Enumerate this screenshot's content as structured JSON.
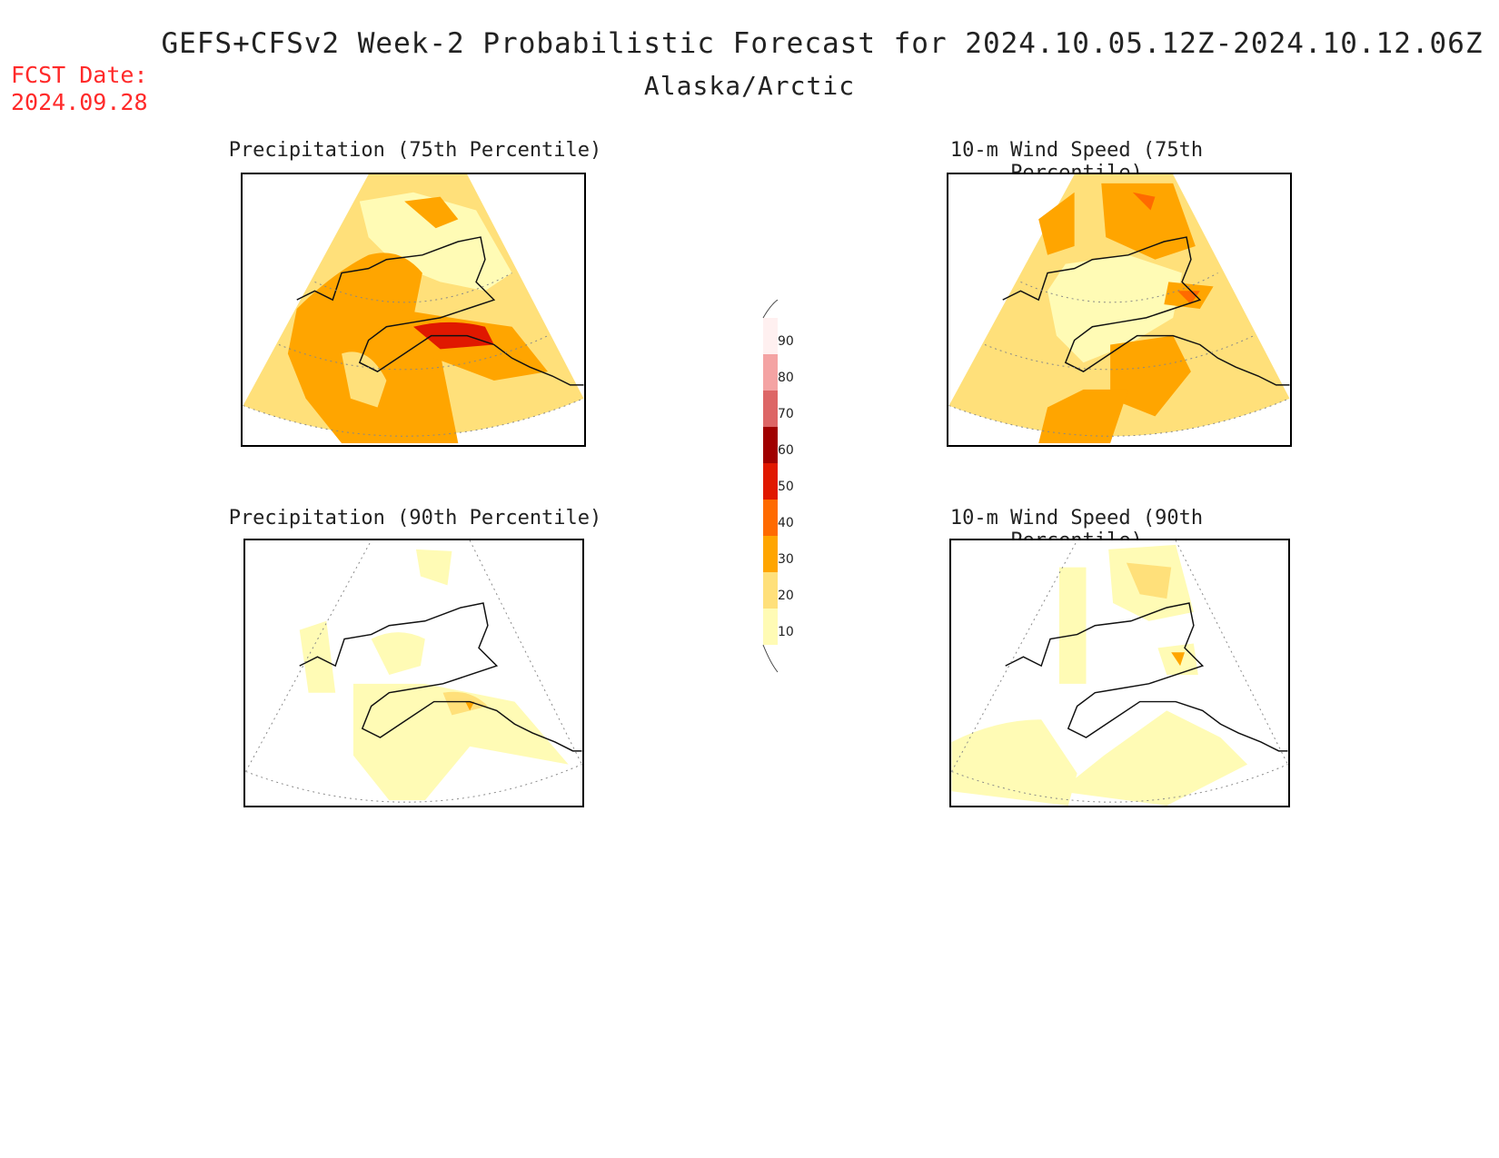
{
  "header": {
    "title": "GEFS+CFSv2 Week-2 Probabilistic Forecast for 2024.10.05.12Z-2024.10.12.06Z",
    "region": "Alaska/Arctic",
    "fcst_label": "FCST Date:",
    "fcst_date": "2024.09.28"
  },
  "panels": [
    {
      "title": "Precipitation (75th Percentile)"
    },
    {
      "title": "10-m Wind Speed (75th Percentile)"
    },
    {
      "title": "Precipitation (90th Percentile)"
    },
    {
      "title": "10-m Wind Speed (90th Percentile)"
    }
  ],
  "colorbar": {
    "labels": [
      "90",
      "80",
      "70",
      "60",
      "50",
      "40",
      "30",
      "20",
      "10"
    ],
    "colors": [
      "#fff0f0",
      "#f4a3a3",
      "#dd6666",
      "#a00000",
      "#e01800",
      "#ff6a00",
      "#ffa500",
      "#ffe07a",
      "#fffbb5"
    ]
  },
  "colors": {
    "c10": "#fffbb5",
    "c20": "#ffe07a",
    "c30": "#ffa500",
    "c40": "#ff6a00",
    "c50": "#e01800",
    "fcst": "#ff2a2a"
  }
}
